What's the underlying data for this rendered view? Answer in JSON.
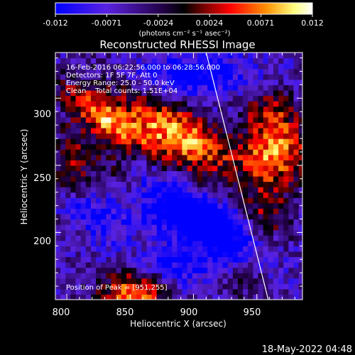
{
  "chart_data": {
    "type": "heatmap",
    "title": "Reconstructed RHESSI Image",
    "xlabel": "Heliocentric X (arcsec)",
    "ylabel": "Heliocentric Y (arcsec)",
    "xlim": [
      791,
      986
    ],
    "ylim": [
      150,
      334
    ],
    "xticks": [
      800,
      850,
      900,
      950
    ],
    "yticks": [
      200,
      250,
      300
    ],
    "colorbar": {
      "range": [
        -0.012,
        0.012
      ],
      "ticks": [
        "-0.012",
        "-0.0071",
        "-0.0024",
        "0.0024",
        "0.0071",
        "0.012"
      ],
      "unit_label": "(photons cm⁻² s⁻¹ asec⁻²)",
      "colors": [
        "#0000ff",
        "#6a1ad8",
        "#000000",
        "#ff0000",
        "#ff9900",
        "#ffffcc",
        "#ffffff"
      ]
    },
    "annotations": [
      "16-Feb-2016 06:22:56.000 to 06:28:56.000",
      "Detectors: 1F 5F 7F, Att 0",
      "Energy Range: 25.0 - 50.0 keV",
      "Clean    Total counts: 1.51E+04"
    ],
    "peak_label": "Position of Peak = [951,255]",
    "peak_position": [
      951,
      255
    ],
    "bright_regions": [
      {
        "x": 830,
        "y": 285,
        "sx": 28,
        "sy": 9,
        "rot": -35,
        "amp": 0.013
      },
      {
        "x": 875,
        "y": 275,
        "sx": 38,
        "sy": 12,
        "rot": -40,
        "amp": 0.011
      },
      {
        "x": 905,
        "y": 272,
        "sx": 25,
        "sy": 10,
        "rot": -35,
        "amp": 0.009
      },
      {
        "x": 845,
        "y": 240,
        "sx": 30,
        "sy": 10,
        "rot": -38,
        "amp": 0.008
      },
      {
        "x": 802,
        "y": 245,
        "sx": 12,
        "sy": 25,
        "rot": 0,
        "amp": 0.007
      },
      {
        "x": 965,
        "y": 260,
        "sx": 20,
        "sy": 16,
        "rot": 10,
        "amp": 0.013
      },
      {
        "x": 960,
        "y": 290,
        "sx": 15,
        "sy": 12,
        "rot": 0,
        "amp": 0.008
      },
      {
        "x": 958,
        "y": 215,
        "sx": 14,
        "sy": 20,
        "rot": 0,
        "amp": 0.007
      },
      {
        "x": 852,
        "y": 155,
        "sx": 18,
        "sy": 12,
        "rot": 0,
        "amp": 0.014
      },
      {
        "x": 940,
        "y": 165,
        "sx": 12,
        "sy": 10,
        "rot": 0,
        "amp": 0.005
      }
    ],
    "dark_regions": [
      {
        "x": 870,
        "y": 222,
        "sx": 30,
        "sy": 12,
        "rot": -35,
        "amp": -0.01
      },
      {
        "x": 920,
        "y": 205,
        "sx": 30,
        "sy": 12,
        "rot": -30,
        "amp": -0.01
      },
      {
        "x": 900,
        "y": 318,
        "sx": 30,
        "sy": 10,
        "rot": 0,
        "amp": -0.008
      },
      {
        "x": 815,
        "y": 215,
        "sx": 22,
        "sy": 10,
        "rot": -30,
        "amp": -0.007
      },
      {
        "x": 890,
        "y": 175,
        "sx": 25,
        "sy": 10,
        "rot": 0,
        "amp": -0.006
      }
    ],
    "limb_line": {
      "from": [
        910,
        334
      ],
      "to": [
        959,
        150
      ]
    }
  },
  "footer": {
    "date": "18-May-2022 04:48"
  }
}
